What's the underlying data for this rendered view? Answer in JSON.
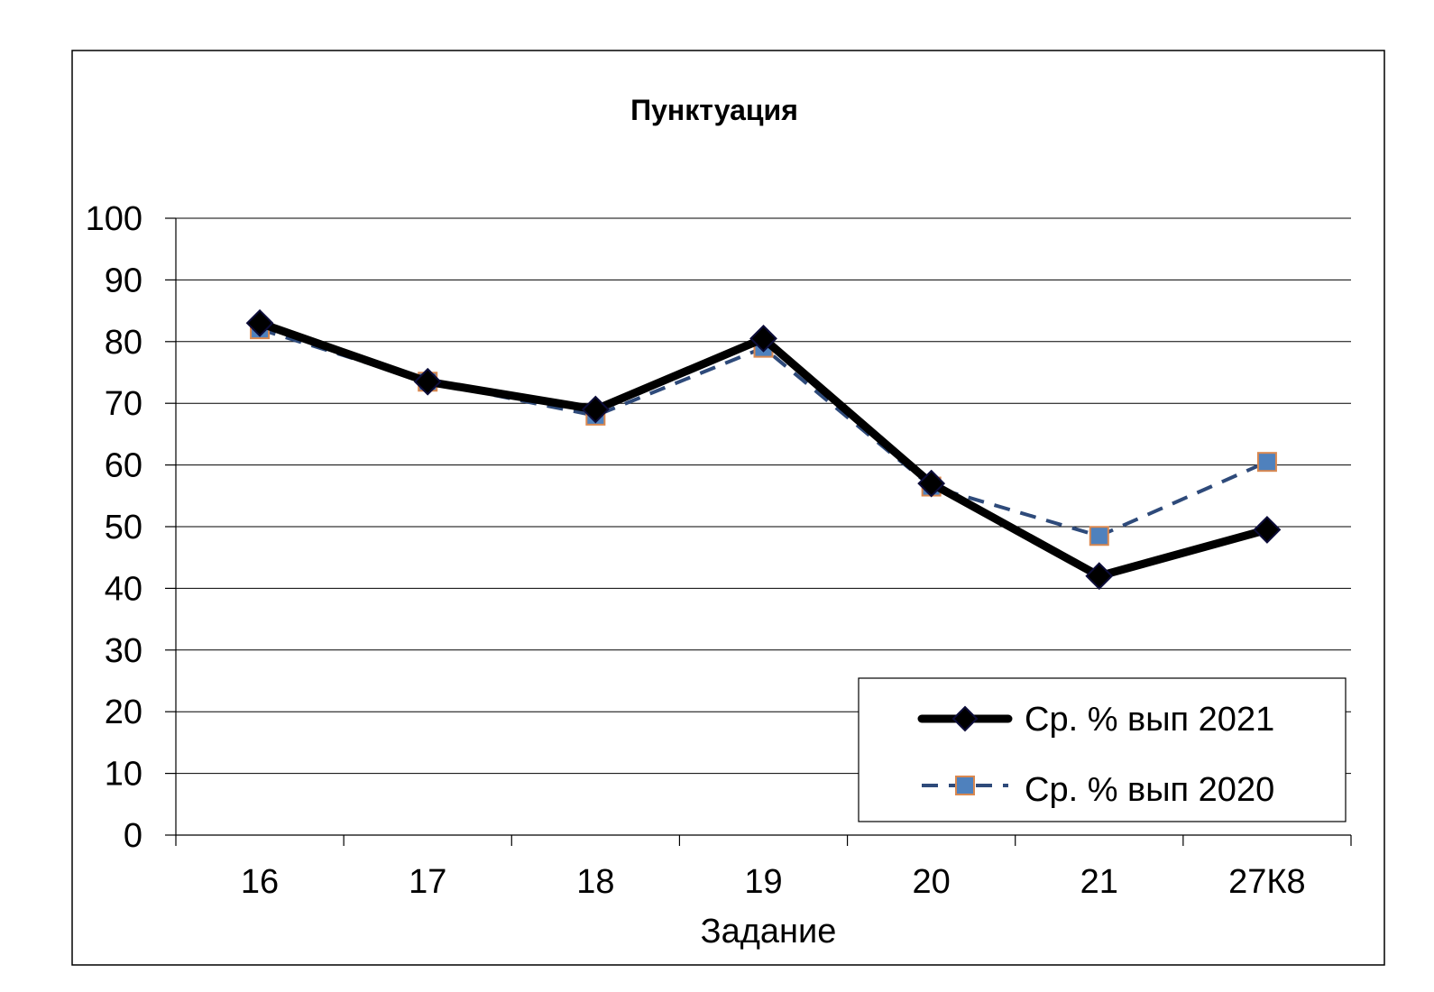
{
  "chart_data": {
    "type": "line",
    "title": "Пунктуация",
    "xlabel": "Задание",
    "ylabel": "",
    "categories": [
      "16",
      "17",
      "18",
      "19",
      "20",
      "21",
      "27К8"
    ],
    "ylim": [
      0,
      100
    ],
    "yticks": [
      0,
      10,
      20,
      30,
      40,
      50,
      60,
      70,
      80,
      90,
      100
    ],
    "grid": "horizontal",
    "legend": "bottom-right",
    "series": [
      {
        "name": "Ср. % вып 2021",
        "values": [
          83,
          73.5,
          69,
          80.5,
          57,
          42,
          49.5
        ],
        "color": "#000000",
        "line": "solid",
        "marker": "diamond",
        "marker_color": "#0d0d3a"
      },
      {
        "name": "Ср. % вып 2020",
        "values": [
          82,
          73.5,
          68,
          79,
          56.5,
          48.5,
          60.5
        ],
        "color": "#2e4a7a",
        "line": "dashed",
        "marker": "square",
        "marker_color": "#4f81bd",
        "marker_edge": "#d98850"
      }
    ]
  }
}
